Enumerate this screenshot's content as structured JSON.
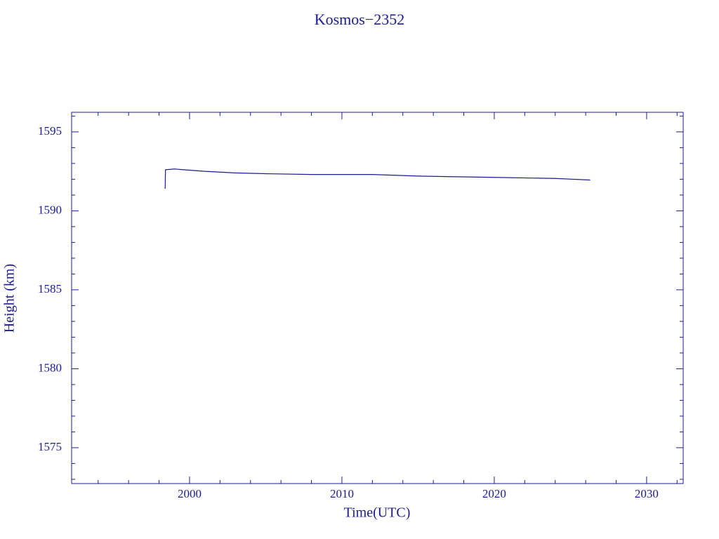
{
  "chart_data": {
    "type": "line",
    "title": "Kosmos−2352",
    "x_label": "Time(UTC)",
    "y_label": "Height (km)",
    "x": [
      1998.4,
      1998.42,
      1999,
      2001,
      2003,
      2005,
      2008,
      2012,
      2015,
      2018,
      2021,
      2024,
      2026.3
    ],
    "series": [
      {
        "name": "Height",
        "color": "#1c1c8f",
        "values": [
          1591.4,
          1592.6,
          1592.65,
          1592.5,
          1592.4,
          1592.35,
          1592.3,
          1592.3,
          1592.2,
          1592.15,
          1592.1,
          1592.05,
          1591.95
        ]
      }
    ],
    "xlim": [
      1992.26,
      2032.4
    ],
    "ylim": [
      1572.73,
      1596.24
    ],
    "xticks": [
      2000,
      2010,
      2020,
      2030
    ],
    "yticks": [
      1575,
      1580,
      1585,
      1590,
      1595
    ],
    "xticks_minor": [
      1994,
      1996,
      1998,
      2002,
      2004,
      2006,
      2008,
      2012,
      2014,
      2016,
      2018,
      2022,
      2024,
      2026,
      2028,
      2032
    ],
    "yticks_minor": [
      1573,
      1574,
      1576,
      1577,
      1578,
      1579,
      1581,
      1582,
      1583,
      1584,
      1586,
      1587,
      1588,
      1589,
      1591,
      1592,
      1593,
      1594,
      1596
    ]
  }
}
